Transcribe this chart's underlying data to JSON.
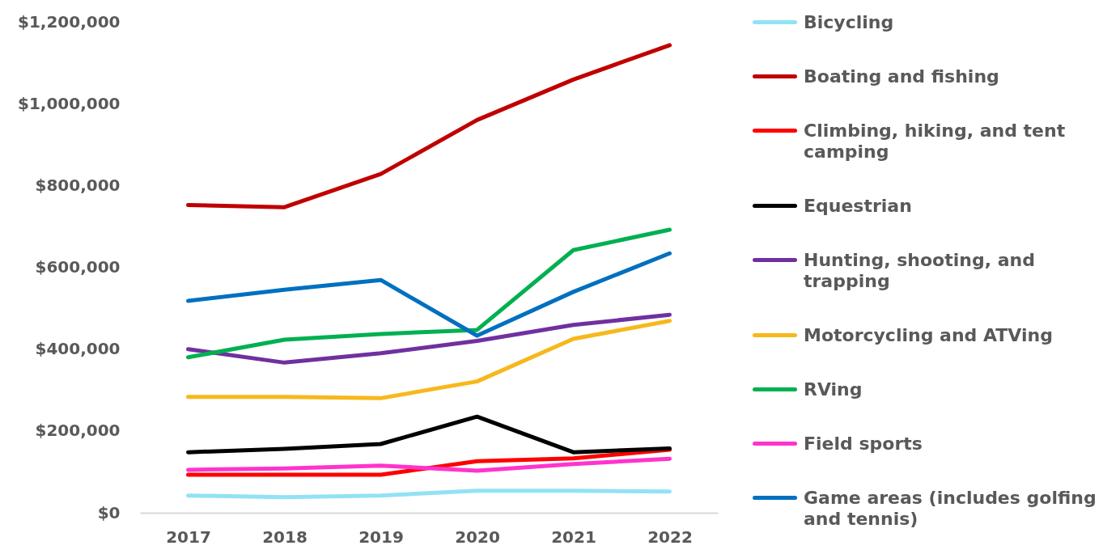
{
  "chart_data": {
    "type": "line",
    "categories": [
      "2017",
      "2018",
      "2019",
      "2020",
      "2021",
      "2022"
    ],
    "series": [
      {
        "name": "Bicycling",
        "color": "#92e2f5",
        "values": [
          42000,
          38000,
          42000,
          54000,
          54000,
          52000
        ]
      },
      {
        "name": "Boating and fishing",
        "color": "#c00000",
        "values": [
          752000,
          747000,
          828000,
          960000,
          1059000,
          1143000
        ]
      },
      {
        "name": "Climbing, hiking, and tent camping",
        "color": "#ff0000",
        "values": [
          93000,
          93000,
          93000,
          126000,
          133000,
          154000
        ]
      },
      {
        "name": "Equestrian",
        "color": "#000000",
        "values": [
          148000,
          156000,
          168000,
          235000,
          148000,
          157000
        ]
      },
      {
        "name": "Hunting, shooting, and trapping",
        "color": "#7030a0",
        "values": [
          400000,
          367000,
          390000,
          420000,
          459000,
          484000
        ]
      },
      {
        "name": "Motorcycling and ATVing",
        "color": "#f7b81c",
        "values": [
          283000,
          283000,
          280000,
          321000,
          425000,
          469000
        ]
      },
      {
        "name": "RVing",
        "color": "#00b050",
        "values": [
          380000,
          423000,
          437000,
          447000,
          642000,
          692000
        ]
      },
      {
        "name": "Field sports",
        "color": "#ff33cc",
        "values": [
          105000,
          108000,
          115000,
          103000,
          119000,
          132000
        ]
      },
      {
        "name": "Game areas (includes golfing and tennis)",
        "color": "#0070c0",
        "values": [
          518000,
          545000,
          569000,
          433000,
          540000,
          634000
        ]
      }
    ],
    "ylim": [
      0,
      1200000
    ],
    "yticks": [
      {
        "value": 0,
        "label": "$0"
      },
      {
        "value": 200000,
        "label": "$200,000"
      },
      {
        "value": 400000,
        "label": "$400,000"
      },
      {
        "value": 600000,
        "label": "$600,000"
      },
      {
        "value": 800000,
        "label": "$800,000"
      },
      {
        "value": 1000000,
        "label": "$1,000,000"
      },
      {
        "value": 1200000,
        "label": "$1,200,000"
      }
    ],
    "legend": "right"
  }
}
